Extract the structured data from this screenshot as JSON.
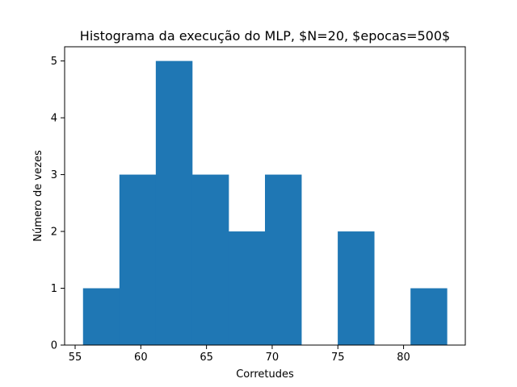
{
  "chart_data": {
    "type": "histogram",
    "title": "Histograma da execução do MLP, $N=20, $epocas=500$",
    "xlabel": "Corretudes",
    "ylabel": "Número de vezes",
    "bins": [
      {
        "start": 55.6,
        "end": 58.37,
        "count": 1
      },
      {
        "start": 58.37,
        "end": 61.14,
        "count": 3
      },
      {
        "start": 61.14,
        "end": 63.91,
        "count": 5
      },
      {
        "start": 63.91,
        "end": 66.68,
        "count": 3
      },
      {
        "start": 66.68,
        "end": 69.45,
        "count": 2
      },
      {
        "start": 69.45,
        "end": 72.22,
        "count": 3
      },
      {
        "start": 72.22,
        "end": 74.99,
        "count": 0
      },
      {
        "start": 74.99,
        "end": 77.76,
        "count": 2
      },
      {
        "start": 77.76,
        "end": 80.53,
        "count": 0
      },
      {
        "start": 80.53,
        "end": 83.3,
        "count": 1
      }
    ],
    "xlim": [
      54.2,
      84.7
    ],
    "ylim": [
      0,
      5.25
    ],
    "xticks": [
      "55",
      "60",
      "65",
      "70",
      "75",
      "80"
    ],
    "yticks": [
      "0",
      "1",
      "2",
      "3",
      "4",
      "5"
    ],
    "bar_color": "#1f77b4",
    "grid": false,
    "legend": "none"
  }
}
